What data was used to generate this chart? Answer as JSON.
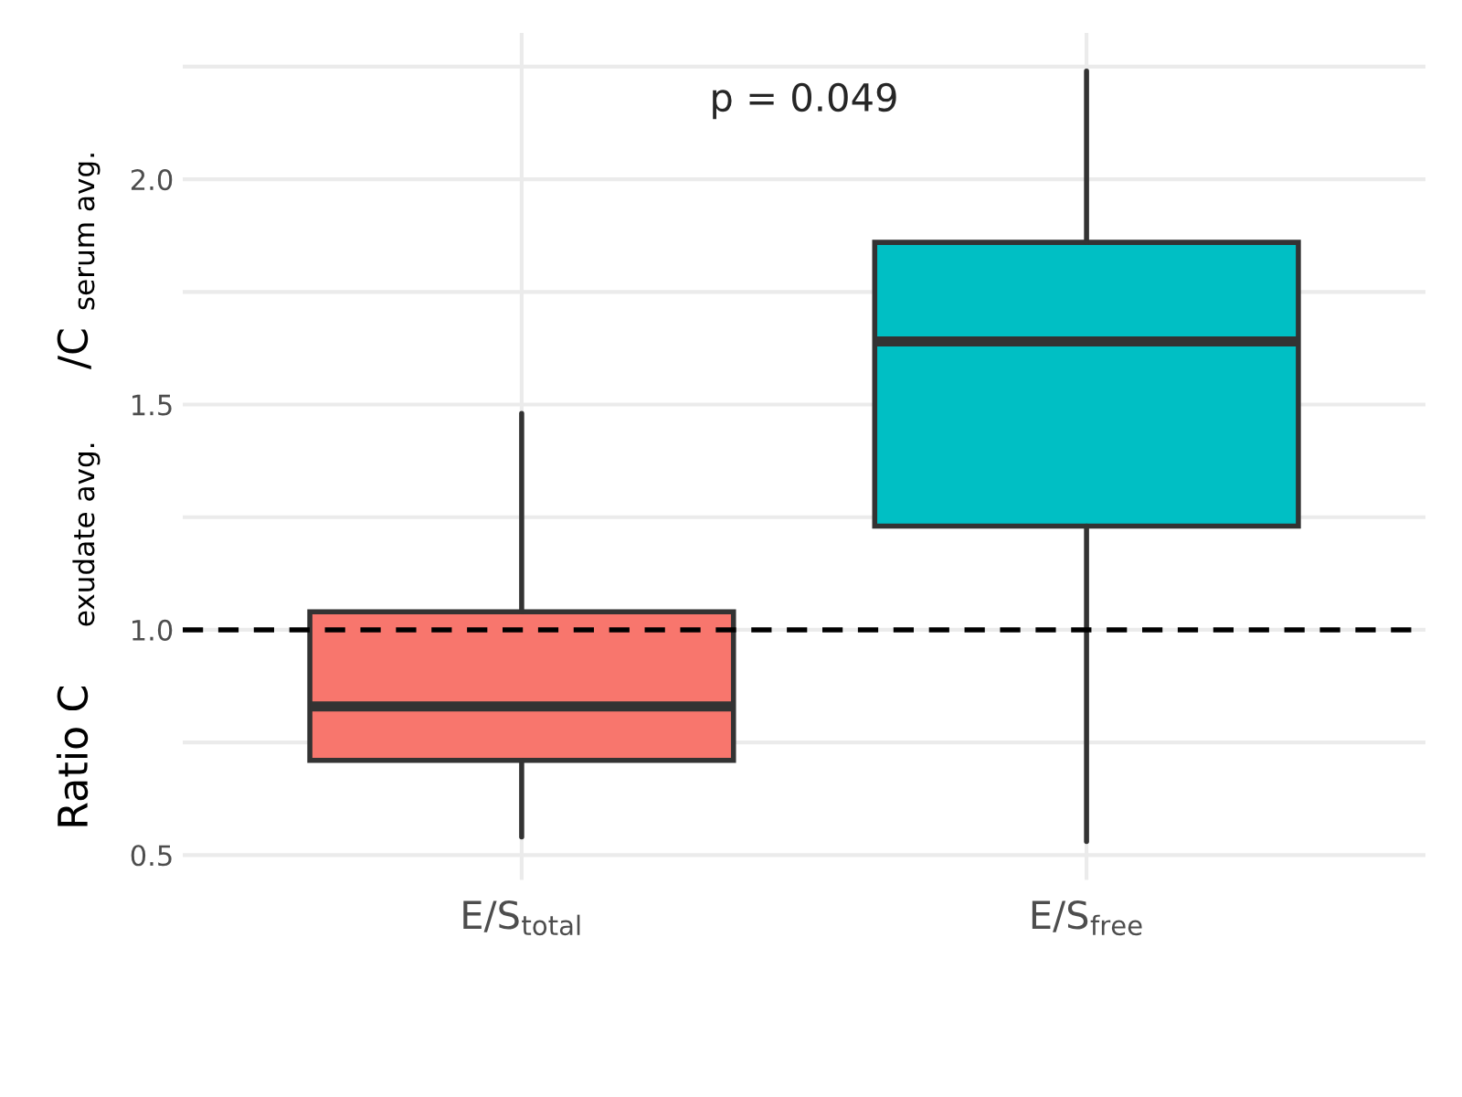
{
  "chart_data": {
    "type": "box",
    "ylabel": "Ratio C$_{exudate avg.}$/C$_{serum avg.}$",
    "categories": [
      "E/S$_{total}$",
      "E/S$_{free}$"
    ],
    "colors": [
      "#f8766d",
      "#00bfc4"
    ],
    "boxes": [
      {
        "low": 0.54,
        "q1": 0.71,
        "median": 0.83,
        "q3": 1.04,
        "high": 1.48
      },
      {
        "low": 0.53,
        "q1": 1.23,
        "median": 1.64,
        "q3": 1.86,
        "high": 2.24
      }
    ],
    "ylim": [
      0.445,
      2.325
    ],
    "yticks": [
      0.5,
      {
        "value": 0.75,
        "label": null
      },
      {
        "value": 1,
        "label": "1.0"
      },
      {
        "value": 1.25,
        "label": null
      },
      1.5,
      {
        "value": 1.75,
        "label": null
      },
      {
        "value": 2,
        "label": "2.0"
      },
      {
        "value": 2.25,
        "label": null
      }
    ],
    "ref_lines": [
      {
        "axis": "y",
        "value": 1.0,
        "color": "#000000",
        "line_style": "dashed"
      }
    ],
    "annotations": [
      "p = 0.049"
    ],
    "grid": true
  }
}
